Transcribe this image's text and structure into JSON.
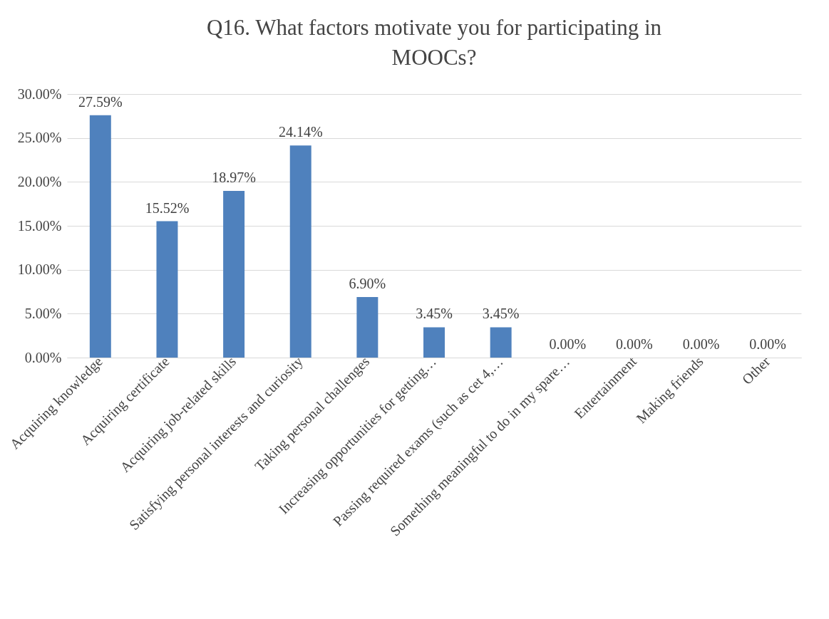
{
  "chart_data": {
    "type": "bar",
    "title": "Q16. What factors motivate you for participating in MOOCs?",
    "categories": [
      "Acquiring knowledge",
      "Acquiring certificate",
      "Acquiring job-related skills",
      "Satisfying personal interests and curiosity",
      "Taking personal challenges",
      "Increasing opportunities for getting…",
      "Passing required exams (such as cet 4,…",
      "Something meaningful to do in my spare…",
      "Entertainment",
      "Making friends",
      "Other"
    ],
    "values": [
      27.59,
      15.52,
      18.97,
      24.14,
      6.9,
      3.45,
      3.45,
      0,
      0,
      0,
      0
    ],
    "value_labels": [
      "27.59%",
      "15.52%",
      "18.97%",
      "24.14%",
      "6.90%",
      "3.45%",
      "3.45%",
      "0.00%",
      "0.00%",
      "0.00%",
      "0.00%"
    ],
    "color": "#4f81bd",
    "ylim": [
      0,
      30
    ],
    "yticks": [
      {
        "value": 0,
        "label": "0.00%"
      },
      {
        "value": 5,
        "label": "5.00%"
      },
      {
        "value": 10,
        "label": "10.00%"
      },
      {
        "value": 15,
        "label": "15.00%"
      },
      {
        "value": 20,
        "label": "20.00%"
      },
      {
        "value": 25,
        "label": "25.00%"
      },
      {
        "value": 30,
        "label": "30.00%"
      }
    ],
    "grid": "y"
  }
}
